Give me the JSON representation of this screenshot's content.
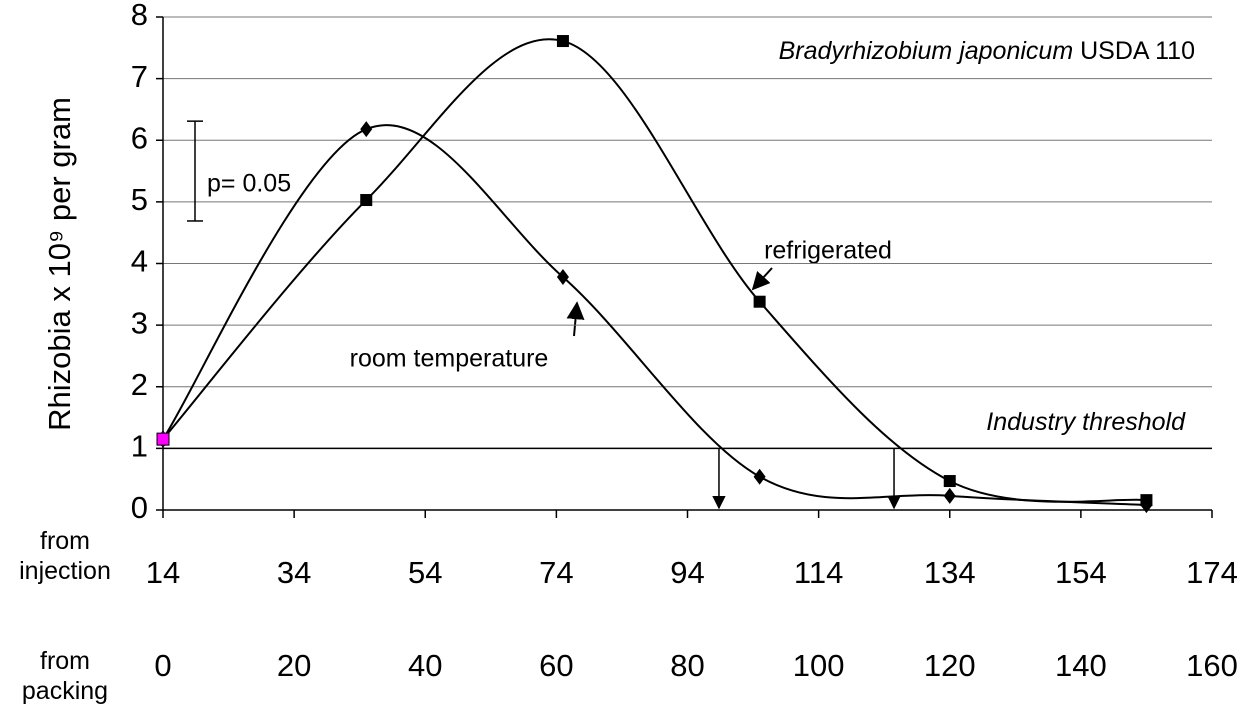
{
  "chart_data": {
    "type": "line",
    "title": {
      "species": "Bradyrhizobium japonicum",
      "strain": "USDA 110"
    },
    "ylabel": "Rhizobia x 10⁹ per gram",
    "xlabel": "from injection",
    "x2label": "from packing",
    "x": [
      14,
      45,
      75,
      105,
      134,
      164
    ],
    "series": [
      {
        "name": "room temperature",
        "color": "#000000",
        "marker": "diamond",
        "values": [
          1.15,
          6.18,
          3.78,
          0.54,
          0.23,
          0.08
        ]
      },
      {
        "name": "refrigerated",
        "color": "#000000",
        "marker": "square",
        "values": [
          1.15,
          5.03,
          7.61,
          3.38,
          0.47,
          0.16
        ]
      }
    ],
    "start_marker_color": "#ff00ff",
    "xlim": [
      14,
      174
    ],
    "xticks": [
      14,
      34,
      54,
      74,
      94,
      114,
      134,
      154,
      174
    ],
    "x2lim": [
      0,
      160
    ],
    "x2ticks": [
      0,
      20,
      40,
      60,
      80,
      100,
      120,
      140,
      160
    ],
    "ylim": [
      0,
      8
    ],
    "yticks": [
      0,
      1,
      2,
      3,
      4,
      5,
      6,
      7,
      8
    ],
    "grid": true,
    "threshold": {
      "label": "Industry threshold",
      "value": 1
    },
    "threshold_crossings": [
      98.8,
      125.5
    ],
    "significance": {
      "label": "p= 0.05",
      "value": 5.5,
      "error": 0.81
    }
  }
}
